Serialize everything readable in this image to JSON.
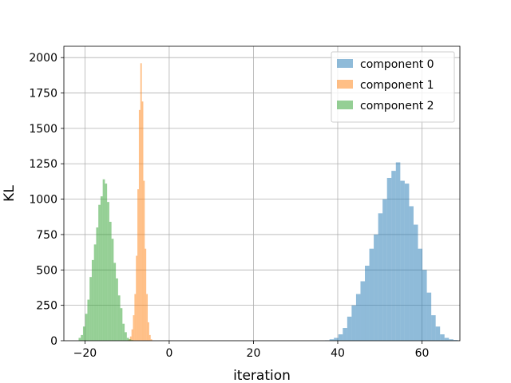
{
  "chart_data": {
    "type": "bar",
    "subtype": "histogram",
    "title": "",
    "xlabel": "iteration",
    "ylabel": "KL",
    "xlim": [
      -25,
      69
    ],
    "ylim": [
      0,
      2080
    ],
    "xticks": [
      -20,
      0,
      20,
      40,
      60
    ],
    "xtick_labels": [
      "−20",
      "0",
      "20",
      "40",
      "60"
    ],
    "yticks": [
      0,
      250,
      500,
      750,
      1000,
      1250,
      1500,
      1750,
      2000
    ],
    "ytick_labels": [
      "0",
      "250",
      "500",
      "750",
      "1000",
      "1250",
      "1500",
      "1750",
      "2000"
    ],
    "grid": true,
    "legend_position": "top-right",
    "opacity": 0.5,
    "series": [
      {
        "name": "component 0",
        "color": "#1f77b4",
        "bin_start": 37.0,
        "bin_width": 1.05,
        "counts": [
          3,
          10,
          20,
          45,
          90,
          170,
          250,
          330,
          420,
          530,
          650,
          750,
          900,
          1000,
          1150,
          1200,
          1260,
          1130,
          1110,
          950,
          820,
          650,
          500,
          340,
          180,
          100,
          45,
          20,
          10,
          5
        ]
      },
      {
        "name": "component 1",
        "color": "#ff7f0e",
        "bin_start": -10.0,
        "bin_width": 0.35,
        "counts": [
          3,
          10,
          30,
          80,
          180,
          330,
          600,
          1070,
          1630,
          1960,
          1690,
          1130,
          650,
          330,
          130,
          40,
          10
        ]
      },
      {
        "name": "component 2",
        "color": "#2ca02c",
        "bin_start": -21.5,
        "bin_width": 0.52,
        "counts": [
          20,
          40,
          100,
          190,
          290,
          450,
          570,
          680,
          800,
          960,
          1020,
          1140,
          1110,
          980,
          840,
          720,
          550,
          440,
          320,
          230,
          120,
          60,
          20,
          10,
          4
        ]
      }
    ]
  }
}
